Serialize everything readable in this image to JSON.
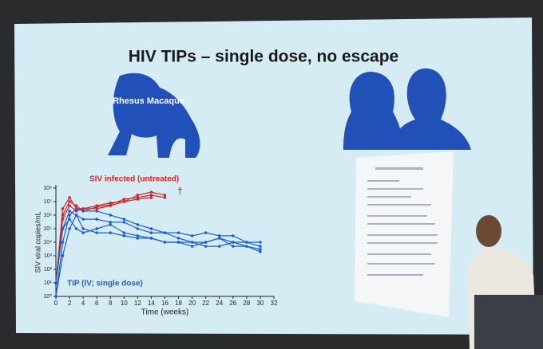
{
  "slide": {
    "title": "HIV TIPs – single dose, no escape",
    "monkey_label": "Rhesus Macaque"
  },
  "chart_data": {
    "type": "line",
    "log_scale": true,
    "xlabel": "Time (weeks)",
    "ylabel": "SIV viral copies/mL",
    "xlim": [
      0,
      32
    ],
    "xticks": [
      0,
      2,
      4,
      6,
      8,
      10,
      12,
      14,
      16,
      18,
      20,
      22,
      24,
      26,
      28,
      30,
      32
    ],
    "ylim": [
      1,
      100000000
    ],
    "yticks": [
      {
        "value": 1,
        "label": "10⁰"
      },
      {
        "value": 10,
        "label": "10¹"
      },
      {
        "value": 100,
        "label": "10²"
      },
      {
        "value": 1000,
        "label": "10³"
      },
      {
        "value": 10000,
        "label": "10⁴"
      },
      {
        "value": 100000,
        "label": "10⁵"
      },
      {
        "value": 1000000,
        "label": "10⁶"
      },
      {
        "value": 10000000,
        "label": "10⁷"
      },
      {
        "value": 100000000,
        "label": "10⁸"
      }
    ],
    "annotations": [
      {
        "text": "SIV infected (untreated)",
        "color": "#d62728"
      },
      {
        "text": "TIP (IV; single dose)",
        "color": "#1f5fd6"
      },
      {
        "text": "†",
        "color": "#d62728"
      }
    ],
    "series": [
      {
        "color": "#d62728",
        "x": [
          0,
          1,
          2,
          3,
          4,
          6,
          8,
          10,
          12,
          14,
          16
        ],
        "values": [
          10,
          3000000,
          20000000,
          3000000,
          3000000,
          5000000,
          8000000,
          10000000,
          30000000,
          50000000,
          30000000
        ]
      },
      {
        "color": "#d62728",
        "x": [
          0,
          1,
          2,
          3,
          4,
          6,
          8,
          10,
          12,
          14,
          16
        ],
        "values": [
          10,
          1000000,
          10000000,
          5000000,
          2000000,
          4000000,
          6000000,
          15000000,
          20000000,
          30000000,
          20000000
        ]
      },
      {
        "color": "#d62728",
        "x": [
          0,
          1,
          2,
          3,
          4,
          6,
          8,
          10,
          12,
          14,
          16
        ],
        "values": [
          10,
          500000,
          5000000,
          2000000,
          3000000,
          3000000,
          5000000,
          10000000,
          15000000,
          20000000,
          null
        ]
      },
      {
        "color": "#1f5fd6",
        "x": [
          0,
          1,
          2,
          3,
          4,
          6,
          8,
          10,
          12,
          14,
          16,
          18,
          20,
          22,
          24,
          26,
          28,
          30
        ],
        "values": [
          1,
          10000,
          1000000,
          3000000,
          2000000,
          2000000,
          1000000,
          500000,
          200000,
          100000,
          50000,
          20000,
          10000,
          10000,
          20000,
          10000,
          5000,
          2000
        ]
      },
      {
        "color": "#1f5fd6",
        "x": [
          0,
          1,
          2,
          3,
          4,
          6,
          8,
          10,
          12,
          14,
          16,
          18,
          20,
          22,
          24,
          26,
          28,
          30
        ],
        "values": [
          10,
          100000,
          2000000,
          1000000,
          500000,
          500000,
          300000,
          300000,
          100000,
          50000,
          50000,
          50000,
          30000,
          50000,
          30000,
          30000,
          10000,
          10000
        ]
      },
      {
        "color": "#1f5fd6",
        "x": [
          0,
          1,
          2,
          3,
          4,
          6,
          8,
          10,
          12,
          14,
          16,
          18,
          20,
          22,
          24,
          26,
          28,
          30
        ],
        "values": [
          10,
          100000,
          500000,
          100000,
          50000,
          100000,
          200000,
          50000,
          30000,
          20000,
          10000,
          10000,
          5000,
          10000,
          20000,
          5000,
          5000,
          3000
        ]
      },
      {
        "color": "#1f5fd6",
        "x": [
          0,
          1,
          2,
          3,
          4,
          6,
          8,
          10,
          12,
          14,
          16,
          18,
          20,
          22,
          24,
          26,
          28,
          30
        ],
        "values": [
          1,
          1000,
          100000,
          1000000,
          100000,
          50000,
          50000,
          30000,
          20000,
          20000,
          10000,
          10000,
          10000,
          5000,
          5000,
          10000,
          10000,
          5000
        ]
      }
    ]
  }
}
